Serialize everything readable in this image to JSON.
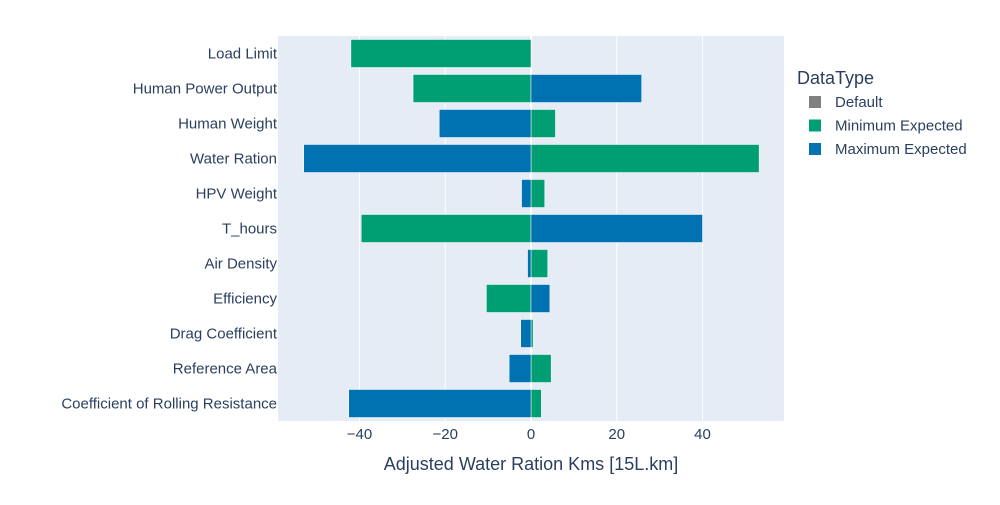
{
  "chart_data": {
    "type": "bar",
    "orientation": "horizontal",
    "barmode": "overlay",
    "categories": [
      "Load Limit",
      "Human Power Output",
      "Human Weight",
      "Water Ration",
      "HPV Weight",
      "T_hours",
      "Air Density",
      "Efficiency",
      "Drag Coefficient",
      "Reference Area",
      "Coefficient of Rolling Resistance"
    ],
    "series": [
      {
        "name": "Default",
        "color": "#808080",
        "values": [
          0,
          0,
          0,
          0,
          0,
          0,
          0,
          0,
          0,
          0,
          0
        ]
      },
      {
        "name": "Minimum Expected",
        "color": "#009e73",
        "values": [
          -42,
          -27.5,
          5.7,
          53.2,
          3.2,
          -39.6,
          3.9,
          -10.4,
          0.5,
          4.7,
          2.4
        ]
      },
      {
        "name": "Maximum Expected",
        "color": "#0072b2",
        "values": [
          0,
          25.8,
          -21.4,
          -53,
          -2.2,
          40,
          -0.8,
          4.4,
          -2.4,
          -5.1,
          -42.5
        ]
      }
    ],
    "xlabel": "Adjusted Water Ration Kms [15L.km]",
    "ylabel": "",
    "xlim": [
      -59,
      59
    ],
    "xticks": [
      -40,
      -20,
      0,
      20,
      40
    ],
    "xtick_labels": [
      "−40",
      "−20",
      "0",
      "20",
      "40"
    ],
    "grid": true,
    "legend": {
      "title": "DataType",
      "position": "top-right"
    },
    "plot_background": "#e5ecf6"
  }
}
